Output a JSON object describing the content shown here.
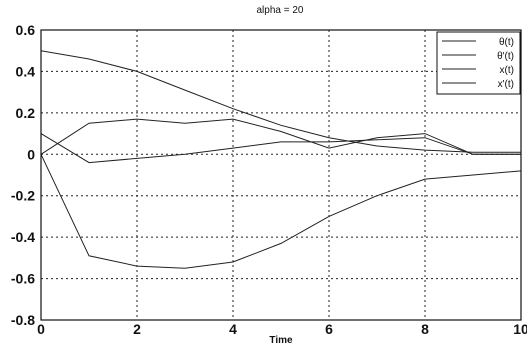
{
  "chart_data": {
    "type": "line",
    "title": "alpha = 20",
    "xlabel": "Time",
    "ylabel": "",
    "xlim": [
      0,
      10
    ],
    "ylim": [
      -0.8,
      0.6
    ],
    "xticks": [
      "0",
      "2",
      "4",
      "6",
      "8",
      "10"
    ],
    "yticks": [
      "0.6",
      "0.4",
      "0.2",
      "0",
      "-0.2",
      "-0.4",
      "-0.6",
      "-0.8"
    ],
    "grid": true,
    "legend_position": "top-right",
    "x": [
      0,
      1,
      2,
      3,
      4,
      5,
      6,
      7,
      8,
      9,
      10
    ],
    "series": [
      {
        "name": "θ(t)",
        "values": [
          0.5,
          0.46,
          0.4,
          0.31,
          0.22,
          0.14,
          0.08,
          0.04,
          0.02,
          0.01,
          0.01
        ]
      },
      {
        "name": "θ'(t)",
        "values": [
          0.0,
          0.15,
          0.17,
          0.15,
          0.17,
          0.11,
          0.03,
          0.08,
          0.1,
          0.0,
          0.0
        ]
      },
      {
        "name": "x(t)",
        "values": [
          0.1,
          -0.04,
          -0.02,
          0.0,
          0.03,
          0.06,
          0.06,
          0.07,
          0.08,
          0.0,
          0.0
        ]
      },
      {
        "name": "x'(t)",
        "values": [
          0.0,
          -0.49,
          -0.54,
          -0.55,
          -0.52,
          -0.43,
          -0.3,
          -0.2,
          -0.12,
          -0.1,
          -0.08
        ]
      }
    ]
  }
}
